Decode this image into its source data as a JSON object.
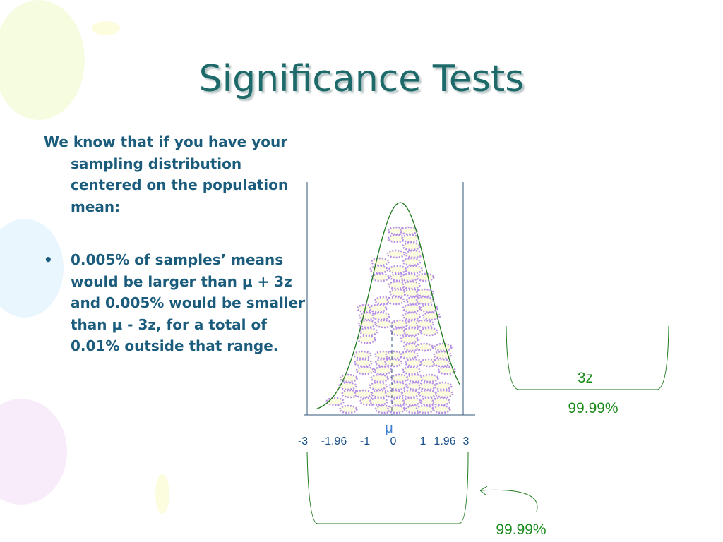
{
  "slide": {
    "title": "Significance Tests",
    "intro": "We know that if you have your sampling distribution centered on the population mean:",
    "bullet": "0.005% of samples’ means would be larger than μ + 3z and 0.005% would be smaller than μ - 3z, for a total of 0.01% outside that range.",
    "diagram": {
      "mu_label": "μ",
      "axis_labels": [
        "-3",
        "-1.96",
        "-1",
        "0",
        "1",
        "1.96",
        "3"
      ],
      "bracket_label": "3z",
      "coverage_label": "99.99%",
      "arrow_label": "99.99%"
    }
  }
}
